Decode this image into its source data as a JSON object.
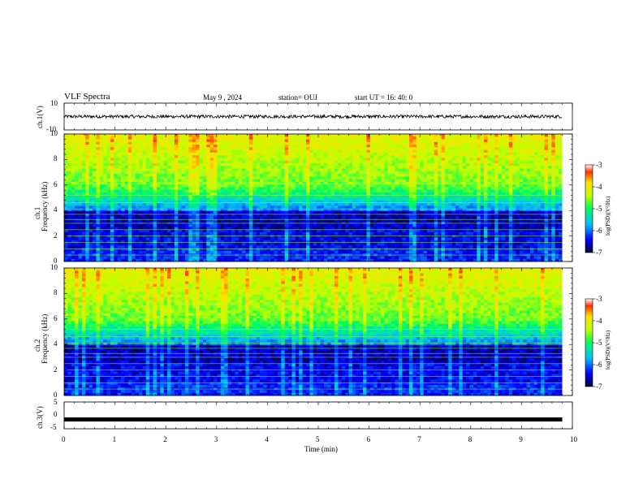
{
  "header": {
    "title": "VLF Spectra",
    "date": "May 9 , 2024",
    "station": "station= OUJ",
    "start": "start UT = 16: 40: 0"
  },
  "chart_data": [
    {
      "type": "line",
      "panel": "ch.1 waveform",
      "ylabel": "ch.1(V)",
      "ylim": [
        -10,
        10
      ],
      "yticks": [
        "10",
        "-10"
      ],
      "xlim": [
        0,
        10
      ],
      "description_values": {
        "mean": 0,
        "noise_amplitude": 1.2
      }
    },
    {
      "type": "heatmap",
      "panel": "ch.1 spectrogram",
      "ylabel": "ch.1 Frequency (kHz)",
      "ylabel_line1": "ch.1",
      "ylabel_line2": "Frequency (kHz)",
      "ylim": [
        0,
        10
      ],
      "yticks": [
        "0",
        "2",
        "4",
        "6",
        "8",
        "10"
      ],
      "xlim": [
        0,
        10
      ],
      "data_end_min": 9.8,
      "colorbar": {
        "label": "log(PSD)(V²/Hz)",
        "range": [
          -7,
          -3
        ],
        "ticks": [
          "-3",
          "-4",
          "-5",
          "-6",
          "-7"
        ]
      }
    },
    {
      "type": "heatmap",
      "panel": "ch.2 spectrogram",
      "ylabel": "ch.2 Frequency (kHz)",
      "ylabel_line1": "ch.2",
      "ylabel_line2": "Frequency (kHz)",
      "ylim": [
        0,
        10
      ],
      "yticks": [
        "0",
        "2",
        "4",
        "6",
        "8",
        "10"
      ],
      "xlim": [
        0,
        10
      ],
      "data_end_min": 9.8,
      "colorbar": {
        "label": "log(PSD)(V²/Hz)",
        "range": [
          -7,
          -3
        ],
        "ticks": [
          "-3",
          "-4",
          "-5",
          "-6",
          "-7"
        ]
      }
    },
    {
      "type": "line",
      "panel": "ch.3 waveform",
      "ylabel": "ch.3(V)",
      "ylim": [
        -5,
        5
      ],
      "yticks": [
        "5",
        "0",
        "-5"
      ],
      "xlim": [
        0,
        10
      ],
      "description_values": {
        "mean": -1.5
      }
    }
  ],
  "xaxis": {
    "label": "Time (min)",
    "ticks": [
      "0",
      "1",
      "2",
      "3",
      "4",
      "5",
      "6",
      "7",
      "8",
      "9",
      "10"
    ]
  },
  "colors": {
    "frame": "#000000",
    "low": "#000010",
    "high": "#ff0000"
  }
}
